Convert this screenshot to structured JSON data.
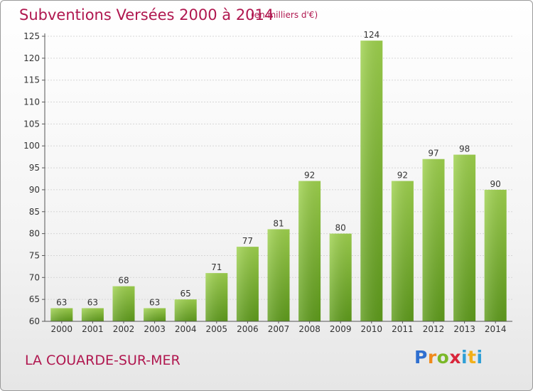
{
  "chart_data": {
    "type": "bar",
    "title": "Subventions Versées 2000 à 2014",
    "subtitle": "(en milliers d'€)",
    "categories": [
      "2000",
      "2001",
      "2002",
      "2003",
      "2004",
      "2005",
      "2006",
      "2007",
      "2008",
      "2009",
      "2010",
      "2011",
      "2012",
      "2013",
      "2014"
    ],
    "values": [
      63,
      63,
      68,
      63,
      65,
      71,
      77,
      81,
      92,
      80,
      124,
      92,
      97,
      98,
      90
    ],
    "ylim": [
      60,
      125
    ],
    "yticks": [
      60,
      65,
      70,
      75,
      80,
      85,
      90,
      95,
      100,
      105,
      110,
      115,
      120,
      125
    ],
    "grid": true,
    "bar_color": "#8cc63f",
    "bar_color_dark": "#5e9a1e"
  },
  "footer": {
    "commune": "LA COUARDE-SUR-MER",
    "logo_letters": [
      "P",
      "r",
      "o",
      "x",
      "i",
      "t",
      "i"
    ]
  }
}
